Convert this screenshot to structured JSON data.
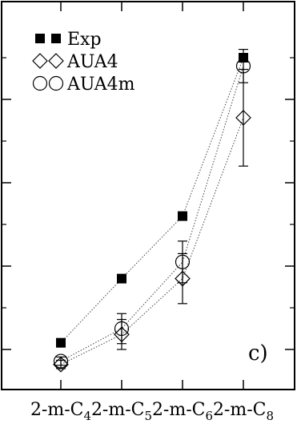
{
  "chart_data": {
    "type": "scatter",
    "panel_label": "c)",
    "categories": [
      "2-m-C",
      "2-m-C",
      "2-m-C",
      "2-m-C"
    ],
    "category_subscripts": [
      "4",
      "5",
      "6",
      "8"
    ],
    "x": [
      1,
      2,
      3,
      4
    ],
    "y_tick_values": [
      0,
      1,
      2,
      3
    ],
    "ylim": [
      -0.27,
      4.05
    ],
    "grid": false,
    "legend_position": "top-left",
    "series": [
      {
        "name": "Exp",
        "marker": "filled-square",
        "values": [
          0.08,
          0.85,
          1.6,
          3.5
        ],
        "err": [
          0,
          0,
          0,
          0
        ]
      },
      {
        "name": "AUA4",
        "marker": "open-diamond",
        "values": [
          -0.18,
          0.18,
          0.85,
          2.78
        ],
        "err": [
          0.05,
          0.18,
          0.3,
          0.58
        ]
      },
      {
        "name": "AUA4m",
        "marker": "open-circle",
        "values": [
          -0.14,
          0.25,
          1.05,
          3.4
        ],
        "err": [
          0.05,
          0.18,
          0.25,
          0.2
        ]
      }
    ]
  }
}
